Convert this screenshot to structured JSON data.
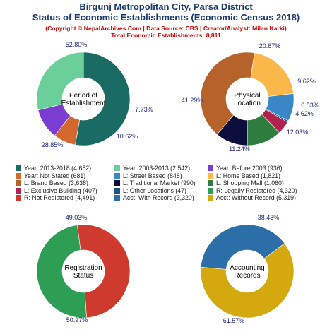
{
  "header": {
    "title_line1": "Birgunj Metropolitan City, Parsa District",
    "title_line2": "Status of Economic Establishments (Economic Census 2018)",
    "copyright": "(Copyright © NepalArchives.Com | Data Source: CBS | Creator/Analyst: Milan Karki)",
    "total": "Total Economic Establishments: 8,811"
  },
  "chart_data": [
    {
      "type": "pie",
      "center_label": [
        "Period of",
        "Establishment"
      ],
      "slices": [
        {
          "label": "Year: 2013-2018",
          "value": 4652,
          "percent_label": "52.80%",
          "color": "#1a6b64"
        },
        {
          "label": "Year: Not Stated",
          "value": 681,
          "percent_label": "7.73%",
          "color": "#d2682b"
        },
        {
          "label": "Year: Before 2003",
          "value": 936,
          "percent_label": "10.62%",
          "color": "#7b3dd1"
        },
        {
          "label": "Year: 2003-2013",
          "value": 2542,
          "percent_label": "28.85%",
          "color": "#6bcf9c"
        }
      ]
    },
    {
      "type": "pie",
      "center_label": [
        "Physical",
        "Location"
      ],
      "slices": [
        {
          "label": "L: Home Based",
          "value": 1821,
          "percent_label": "20.67%",
          "color": "#fbb84a"
        },
        {
          "label": "L: Street Based",
          "value": 848,
          "percent_label": "9.62%",
          "color": "#3a86c7"
        },
        {
          "label": "L: Other Locations",
          "value": 47,
          "percent_label": "0.53%",
          "color": "#1f4f8c"
        },
        {
          "label": "L: Exclusive Building",
          "value": 407,
          "percent_label": "4.62%",
          "color": "#b0214d"
        },
        {
          "label": "L: Shopping Mall",
          "value": 1060,
          "percent_label": "12.03%",
          "color": "#2e7d3e"
        },
        {
          "label": "L: Traditional Market",
          "value": 990,
          "percent_label": "11.24%",
          "color": "#0d0d3d"
        },
        {
          "label": "L: Brand Based",
          "value": 3638,
          "percent_label": "41.29%",
          "color": "#b5622b"
        }
      ]
    },
    {
      "type": "pie",
      "center_label": [
        "Registration",
        "Status"
      ],
      "slices": [
        {
          "label": "R: Legally Registered",
          "value": 4320,
          "percent_label": "49.03%",
          "color": "#2e9e55"
        },
        {
          "label": "R: Not Registered",
          "value": 4491,
          "percent_label": "50.97%",
          "color": "#cf3a2e"
        }
      ]
    },
    {
      "type": "pie",
      "center_label": [
        "Accounting",
        "Records"
      ],
      "slices": [
        {
          "label": "Acct: With Record",
          "value": 3320,
          "percent_label": "38.43%",
          "color": "#2b6ea8"
        },
        {
          "label": "Acct: Without Record",
          "value": 5319,
          "percent_label": "61.57%",
          "color": "#d4a90f"
        }
      ]
    }
  ],
  "legend": [
    {
      "text": "Year: 2013-2018 (4,652)",
      "color": "#1a6b64"
    },
    {
      "text": "Year: 2003-2013 (2,542)",
      "color": "#6bcf9c"
    },
    {
      "text": "Year: Before 2003 (936)",
      "color": "#7b3dd1"
    },
    {
      "text": "Year: Not Stated (681)",
      "color": "#d2682b"
    },
    {
      "text": "L: Street Based (848)",
      "color": "#3a86c7"
    },
    {
      "text": "L: Home Based (1,821)",
      "color": "#fbb84a"
    },
    {
      "text": "L: Brand Based (3,638)",
      "color": "#b5622b"
    },
    {
      "text": "L: Traditional Market (990)",
      "color": "#0d0d3d"
    },
    {
      "text": "L: Shopping Mall (1,060)",
      "color": "#2e7d3e"
    },
    {
      "text": "L: Exclusive Building (407)",
      "color": "#b0214d"
    },
    {
      "text": "L: Other Locations (47)",
      "color": "#1f4f8c"
    },
    {
      "text": "R: Legally Registered (4,320)",
      "color": "#2e9e55"
    },
    {
      "text": "R: Not Registered (4,491)",
      "color": "#cf3a2e"
    },
    {
      "text": "Acct: With Record (3,320)",
      "color": "#2b6ea8"
    },
    {
      "text": "Acct: Without Record (5,319)",
      "color": "#d4a90f"
    }
  ]
}
